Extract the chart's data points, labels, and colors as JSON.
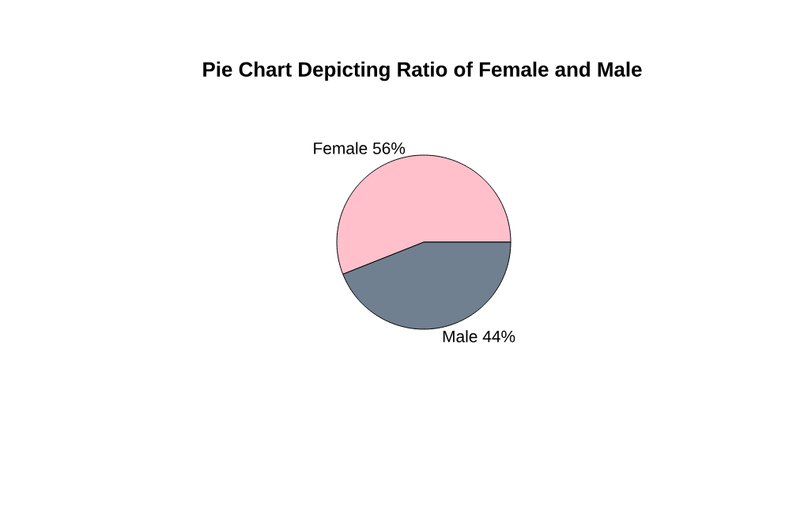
{
  "chart_data": {
    "type": "pie",
    "title": "Pie Chart Depicting Ratio of Female and Male",
    "categories": [
      "Female 56%",
      "Male 44%"
    ],
    "values": [
      56,
      44
    ],
    "colors": [
      "#ffc0cb",
      "#708090"
    ]
  }
}
